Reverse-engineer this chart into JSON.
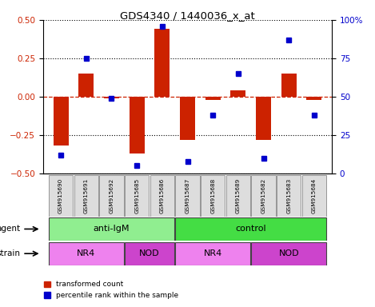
{
  "title": "GDS4340 / 1440036_x_at",
  "samples": [
    "GSM915690",
    "GSM915691",
    "GSM915692",
    "GSM915685",
    "GSM915686",
    "GSM915687",
    "GSM915688",
    "GSM915689",
    "GSM915682",
    "GSM915683",
    "GSM915684"
  ],
  "red_values": [
    -0.32,
    0.15,
    -0.01,
    -0.37,
    0.44,
    -0.28,
    -0.02,
    0.04,
    -0.28,
    0.15,
    -0.02
  ],
  "blue_values": [
    12,
    75,
    49,
    5,
    96,
    8,
    38,
    65,
    10,
    87,
    38
  ],
  "ylim_left": [
    -0.5,
    0.5
  ],
  "ylim_right": [
    0,
    100
  ],
  "yticks_left": [
    -0.5,
    -0.25,
    0,
    0.25,
    0.5
  ],
  "yticks_right": [
    0,
    25,
    50,
    75,
    100
  ],
  "agent_groups": [
    {
      "label": "anti-IgM",
      "start": 0,
      "end": 4,
      "color": "#90EE90"
    },
    {
      "label": "control",
      "start": 5,
      "end": 10,
      "color": "#44DD44"
    }
  ],
  "strain_groups": [
    {
      "label": "NR4",
      "start": 0,
      "end": 2,
      "color": "#EE82EE"
    },
    {
      "label": "NOD",
      "start": 3,
      "end": 4,
      "color": "#CC44CC"
    },
    {
      "label": "NR4",
      "start": 5,
      "end": 7,
      "color": "#EE82EE"
    },
    {
      "label": "NOD",
      "start": 8,
      "end": 10,
      "color": "#CC44CC"
    }
  ],
  "red_color": "#CC2200",
  "blue_color": "#0000CC",
  "bar_width": 0.6,
  "legend_red": "transformed count",
  "legend_blue": "percentile rank within the sample"
}
